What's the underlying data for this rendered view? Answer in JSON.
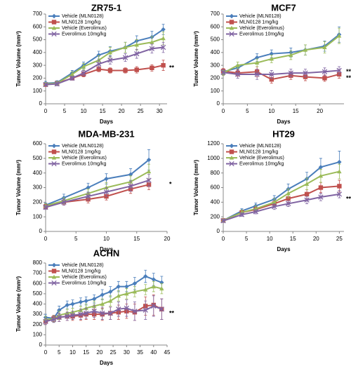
{
  "chart_data": [
    {
      "type": "line",
      "title": "ZR75-1",
      "x_label": "Days",
      "y_label": "Tumor Volume (mm³)",
      "x": [
        0,
        3,
        7,
        10,
        14,
        17,
        21,
        24,
        28,
        31
      ],
      "xlim": [
        0,
        32
      ],
      "xticks": [
        0,
        5,
        10,
        15,
        20,
        25,
        30
      ],
      "ylim": [
        0,
        700
      ],
      "yticks": [
        0,
        100,
        200,
        300,
        400,
        500,
        600,
        700
      ],
      "series": [
        {
          "name": "Vehicle (MLN0128)",
          "color": "#4a7ebb",
          "marker": "diamond",
          "values": [
            160,
            165,
            240,
            300,
            380,
            410,
            440,
            490,
            520,
            580
          ],
          "errors": [
            15,
            15,
            20,
            25,
            30,
            35,
            40,
            40,
            45,
            40
          ]
        },
        {
          "name": "MLN0128 1mg/kg",
          "color": "#c0504d",
          "marker": "square",
          "values": [
            150,
            160,
            200,
            230,
            270,
            260,
            260,
            265,
            280,
            300
          ],
          "errors": [
            10,
            10,
            15,
            20,
            20,
            20,
            20,
            25,
            25,
            40
          ]
        },
        {
          "name": "Vehicle (Everolimus)",
          "color": "#9bbb59",
          "marker": "triangle",
          "values": [
            155,
            160,
            230,
            290,
            340,
            400,
            440,
            460,
            480,
            510
          ],
          "errors": [
            10,
            15,
            20,
            25,
            35,
            40,
            40,
            40,
            45,
            50
          ]
        },
        {
          "name": "Everolimus 10mg/kg",
          "color": "#8064a2",
          "marker": "x",
          "values": [
            150,
            155,
            200,
            240,
            310,
            340,
            360,
            390,
            430,
            440
          ],
          "errors": [
            10,
            15,
            15,
            20,
            30,
            30,
            30,
            35,
            35,
            40
          ]
        }
      ],
      "annotations": [
        {
          "text": "**",
          "y": 290
        }
      ]
    },
    {
      "type": "line",
      "title": "MCF7",
      "x_label": "Days",
      "y_label": "Tumor Volume (mm³)",
      "x": [
        0,
        3,
        7,
        10,
        14,
        17,
        21,
        24
      ],
      "xlim": [
        0,
        25
      ],
      "xticks": [
        0,
        5,
        10,
        15,
        20
      ],
      "ylim": [
        0,
        700
      ],
      "yticks": [
        0,
        100,
        200,
        300,
        400,
        500,
        600,
        700
      ],
      "series": [
        {
          "name": "Vehicle (MLN0128)",
          "color": "#4a7ebb",
          "marker": "diamond",
          "values": [
            250,
            280,
            360,
            390,
            400,
            420,
            450,
            540
          ],
          "errors": [
            20,
            25,
            30,
            30,
            35,
            40,
            40,
            60
          ]
        },
        {
          "name": "MLN0128 1mg/kg",
          "color": "#c0504d",
          "marker": "square",
          "values": [
            255,
            240,
            250,
            190,
            220,
            210,
            200,
            230
          ],
          "errors": [
            20,
            25,
            40,
            30,
            30,
            30,
            25,
            30
          ]
        },
        {
          "name": "Vehicle (Everolimus)",
          "color": "#9bbb59",
          "marker": "triangle",
          "values": [
            240,
            300,
            320,
            350,
            380,
            420,
            440,
            530
          ],
          "errors": [
            20,
            25,
            30,
            30,
            35,
            40,
            45,
            60
          ]
        },
        {
          "name": "Everolimus 10mg/kg",
          "color": "#8064a2",
          "marker": "x",
          "values": [
            245,
            230,
            230,
            230,
            240,
            240,
            250,
            260
          ],
          "errors": [
            20,
            30,
            40,
            30,
            30,
            30,
            30,
            30
          ]
        }
      ],
      "annotations": [
        {
          "text": "**",
          "y": 260
        },
        {
          "text": "**",
          "y": 210
        }
      ]
    },
    {
      "type": "line",
      "title": "MDA-MB-231",
      "x_label": "Days",
      "y_label": "Tumor Volume (mm³)",
      "x": [
        0,
        3,
        7,
        10,
        14,
        17
      ],
      "xlim": [
        0,
        20
      ],
      "xticks": [
        0,
        5,
        10,
        15,
        20
      ],
      "ylim": [
        0,
        600
      ],
      "yticks": [
        0,
        100,
        200,
        300,
        400,
        500,
        600
      ],
      "series": [
        {
          "name": "Vehicle (MLN0128)",
          "color": "#4a7ebb",
          "marker": "diamond",
          "values": [
            180,
            230,
            300,
            360,
            390,
            490
          ],
          "errors": [
            15,
            25,
            30,
            35,
            40,
            70
          ]
        },
        {
          "name": "MLN0128 1mg/kg",
          "color": "#c0504d",
          "marker": "square",
          "values": [
            170,
            200,
            220,
            240,
            290,
            320
          ],
          "errors": [
            15,
            20,
            25,
            25,
            30,
            35
          ]
        },
        {
          "name": "Vehicle (Everolimus)",
          "color": "#9bbb59",
          "marker": "triangle",
          "values": [
            175,
            210,
            260,
            300,
            340,
            410
          ],
          "errors": [
            15,
            20,
            30,
            35,
            40,
            50
          ]
        },
        {
          "name": "Everolimus 10mg/kg",
          "color": "#8064a2",
          "marker": "x",
          "values": [
            165,
            200,
            240,
            270,
            310,
            350
          ],
          "errors": [
            15,
            20,
            25,
            30,
            35,
            40
          ]
        }
      ],
      "annotations": [
        {
          "text": "*",
          "y": 330
        }
      ]
    },
    {
      "type": "line",
      "title": "HT29",
      "x_label": "Days",
      "y_label": "Tumor Volume (mm³)",
      "x": [
        0,
        4,
        7,
        11,
        14,
        18,
        21,
        25
      ],
      "xlim": [
        0,
        26
      ],
      "xticks": [
        0,
        5,
        10,
        15,
        20,
        25
      ],
      "ylim": [
        0,
        1200
      ],
      "yticks": [
        0,
        200,
        400,
        600,
        800,
        1000,
        1200
      ],
      "series": [
        {
          "name": "Vehicle (MLN0128)",
          "color": "#4a7ebb",
          "marker": "diamond",
          "values": [
            150,
            280,
            350,
            440,
            580,
            720,
            880,
            950
          ],
          "errors": [
            20,
            30,
            40,
            50,
            70,
            90,
            120,
            150
          ]
        },
        {
          "name": "MLN0128 1mg/kg",
          "color": "#c0504d",
          "marker": "square",
          "values": [
            150,
            260,
            300,
            380,
            450,
            510,
            600,
            620
          ],
          "errors": [
            20,
            30,
            35,
            40,
            50,
            60,
            70,
            80
          ]
        },
        {
          "name": "Vehicle (Everolimus)",
          "color": "#9bbb59",
          "marker": "triangle",
          "values": [
            150,
            260,
            310,
            400,
            520,
            650,
            760,
            820
          ],
          "errors": [
            20,
            30,
            40,
            50,
            60,
            80,
            90,
            100
          ]
        },
        {
          "name": "Everolimus 10mg/kg",
          "color": "#8064a2",
          "marker": "x",
          "values": [
            145,
            230,
            270,
            340,
            380,
            430,
            470,
            510
          ],
          "errors": [
            20,
            25,
            30,
            40,
            40,
            50,
            50,
            50
          ]
        }
      ],
      "annotations": [
        {
          "text": "**",
          "y": 460
        }
      ]
    },
    {
      "type": "line",
      "title": "ACHN",
      "x_label": "Days",
      "y_label": "Tumor Volume (mm³)",
      "x": [
        0,
        3,
        5,
        8,
        10,
        13,
        15,
        18,
        21,
        24,
        27,
        30,
        33,
        37,
        40,
        43
      ],
      "xlim": [
        0,
        45
      ],
      "xticks": [
        0,
        5,
        10,
        15,
        20,
        25,
        30,
        35,
        40,
        45
      ],
      "ylim": [
        0,
        800
      ],
      "yticks": [
        0,
        100,
        200,
        300,
        400,
        500,
        600,
        700,
        800
      ],
      "series": [
        {
          "name": "Vehicle (MLN0128)",
          "color": "#4a7ebb",
          "marker": "diamond",
          "values": [
            270,
            260,
            340,
            390,
            400,
            420,
            430,
            450,
            490,
            520,
            570,
            570,
            600,
            670,
            640,
            610
          ],
          "errors": [
            30,
            30,
            40,
            40,
            40,
            40,
            40,
            40,
            50,
            50,
            50,
            50,
            60,
            60,
            60,
            60
          ]
        },
        {
          "name": "MLN0128 1mg/kg",
          "color": "#c0504d",
          "marker": "square",
          "values": [
            230,
            260,
            270,
            280,
            280,
            290,
            300,
            300,
            300,
            310,
            320,
            330,
            320,
            380,
            390,
            350
          ],
          "errors": [
            30,
            30,
            40,
            40,
            40,
            50,
            50,
            50,
            60,
            60,
            70,
            70,
            80,
            90,
            100,
            100
          ]
        },
        {
          "name": "Vehicle (Everolimus)",
          "color": "#9bbb59",
          "marker": "triangle",
          "values": [
            250,
            255,
            290,
            310,
            320,
            340,
            360,
            380,
            400,
            430,
            480,
            500,
            520,
            540,
            570,
            550
          ],
          "errors": [
            30,
            30,
            40,
            40,
            40,
            40,
            40,
            50,
            50,
            50,
            50,
            50,
            50,
            50,
            50,
            50
          ]
        },
        {
          "name": "Everolimus 10mg/kg",
          "color": "#8064a2",
          "marker": "x",
          "values": [
            230,
            250,
            270,
            280,
            290,
            300,
            310,
            330,
            310,
            310,
            350,
            360,
            330,
            340,
            380,
            350
          ],
          "errors": [
            30,
            30,
            40,
            40,
            40,
            50,
            50,
            60,
            60,
            60,
            70,
            80,
            90,
            90,
            100,
            100
          ]
        }
      ],
      "annotations": [
        {
          "text": "**",
          "y": 320
        }
      ]
    }
  ]
}
